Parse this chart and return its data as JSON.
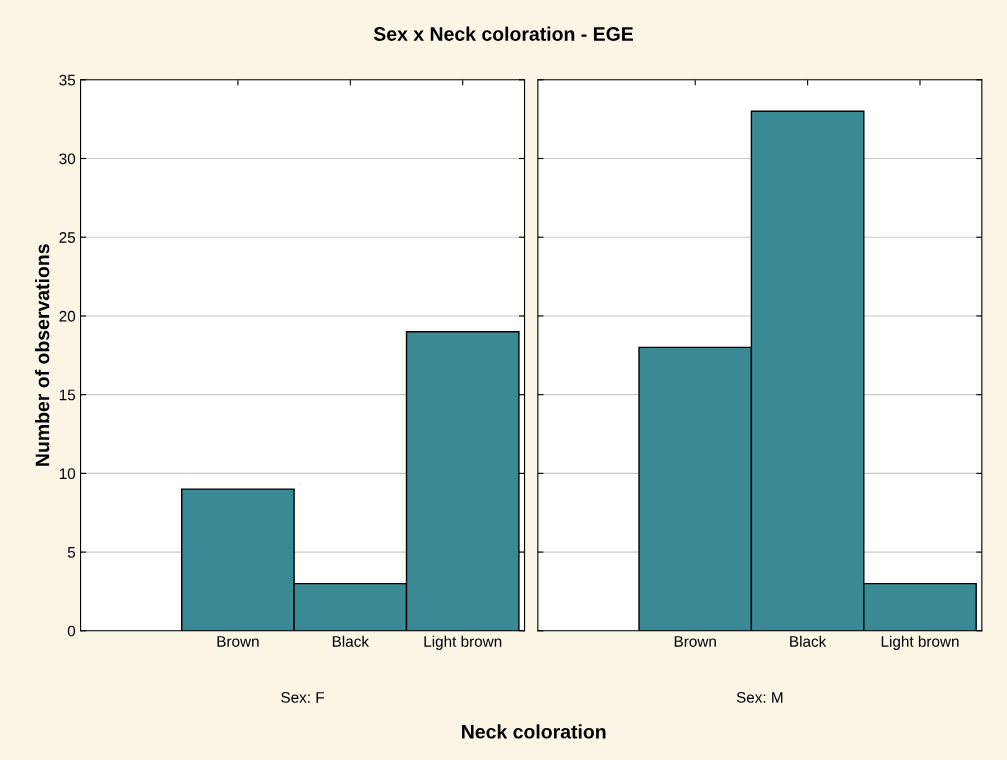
{
  "chart_data": [
    {
      "type": "bar",
      "title": "Sex x Neck coloration - EGE",
      "xlabel": "Sex: F",
      "ylabel": "Number of observations",
      "categories": [
        "Brown",
        "Black",
        "Light brown"
      ],
      "values": [
        9,
        3,
        19
      ],
      "color": "#3a8a96",
      "ylim": [
        0,
        35
      ],
      "yticks": [
        0,
        5,
        10,
        15,
        20,
        25,
        30,
        35
      ],
      "grid": "y",
      "annotations": [
        "Neck coloration"
      ]
    },
    {
      "type": "bar",
      "xlabel": "Sex: M",
      "categories": [
        "Brown",
        "Black",
        "Light brown"
      ],
      "values": [
        18,
        33,
        3
      ],
      "color": "#3a8a96",
      "ylim": [
        0,
        35
      ],
      "yticks": [
        0,
        5,
        10,
        15,
        20,
        25,
        30,
        35
      ],
      "grid": "y",
      "tick_labels": "x"
    }
  ]
}
